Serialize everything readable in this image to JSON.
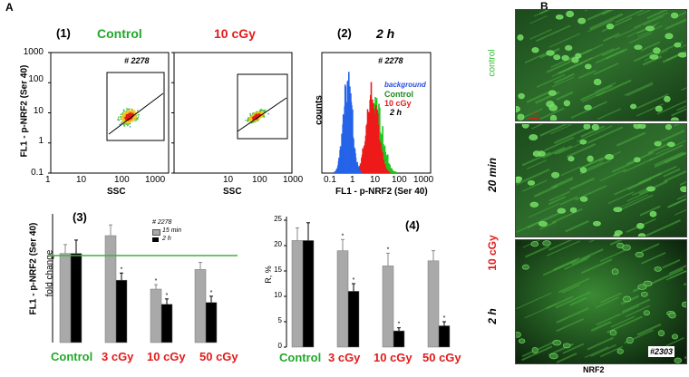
{
  "panel_a_letter": "A",
  "panel_b_letter": "B",
  "flow": {
    "sub1": "(1)",
    "control_label": "Control",
    "dose_label": "10 cGy",
    "sub2": "(2)",
    "time_label": "2 h",
    "sample_id_1": "# 2278",
    "sample_id_2": "# 2278",
    "ylabel": "FL1 - p-NRF2 (Ser 40)",
    "xlabel": "SSC",
    "xlabel2": "SSC",
    "hist_ylabel": "counts",
    "hist_xlabel": "FL1 - p-NRF2 (Ser 40)",
    "legend": [
      "background",
      "Control",
      "10 cGy",
      "2 h"
    ],
    "legend_colors": [
      "#2a4de0",
      "#1c8a1c",
      "#e21b1b",
      "#000000"
    ],
    "yticks": [
      "1000",
      "100",
      "10",
      "1",
      "0.1"
    ],
    "xticks": [
      "1",
      "10",
      "100",
      "1000"
    ],
    "xticks2": [
      "10",
      "100",
      "1000"
    ],
    "hist_xticks": [
      "0.1",
      "1",
      "10",
      "100",
      "1000"
    ]
  },
  "chart_data": [
    {
      "type": "bar",
      "label": "(3)",
      "ylabel_main": "FL1 - p-NRF2 (Ser 40)",
      "ylabel_sub": "fold change",
      "legend_title": "# 2278",
      "categories": [
        "Control",
        "3 cGy",
        "10 cGy",
        "50 cGy"
      ],
      "series": [
        {
          "name": "15 min",
          "color": "#a9a9a9",
          "values": [
            1.0,
            1.2,
            0.6,
            0.82
          ],
          "errors": [
            0.1,
            0.12,
            0.05,
            0.08
          ]
        },
        {
          "name": "2 h",
          "color": "#000000",
          "values": [
            1.0,
            0.7,
            0.43,
            0.45
          ],
          "errors": [
            0.15,
            0.08,
            0.06,
            0.07
          ]
        }
      ],
      "significant": [
        [
          false,
          false,
          true,
          false
        ],
        [
          false,
          true,
          true,
          true
        ]
      ],
      "reference_line": 1.0,
      "ylim": [
        0,
        1.4
      ]
    },
    {
      "type": "bar",
      "label": "(4)",
      "ylabel": "R, %",
      "categories": [
        "Control",
        "3 cGy",
        "10 cGy",
        "50 cGy"
      ],
      "series": [
        {
          "color": "#a9a9a9",
          "values": [
            21,
            19,
            16,
            17
          ],
          "errors": [
            2.5,
            2.2,
            2.5,
            2.0
          ]
        },
        {
          "color": "#000000",
          "values": [
            21,
            11,
            3.2,
            4.2
          ],
          "errors": [
            3.5,
            1.5,
            0.6,
            0.8
          ]
        }
      ],
      "significant": [
        [
          false,
          true,
          true,
          false
        ],
        [
          false,
          true,
          true,
          true
        ]
      ],
      "yticks": [
        "0",
        "5",
        "10",
        "15",
        "20",
        "25"
      ],
      "ylim": [
        0,
        25
      ]
    }
  ],
  "micrographs": {
    "row_labels": [
      "control",
      "20 min",
      "10 cGy",
      "2 h"
    ],
    "scale_bar": "20",
    "stamp": "#2303",
    "caption": "NRF2"
  },
  "colors": {
    "control": "#22a829",
    "dose": "#e21b1b",
    "gray_bar": "#a9a9a9",
    "threshold_line": "#3cb043"
  }
}
